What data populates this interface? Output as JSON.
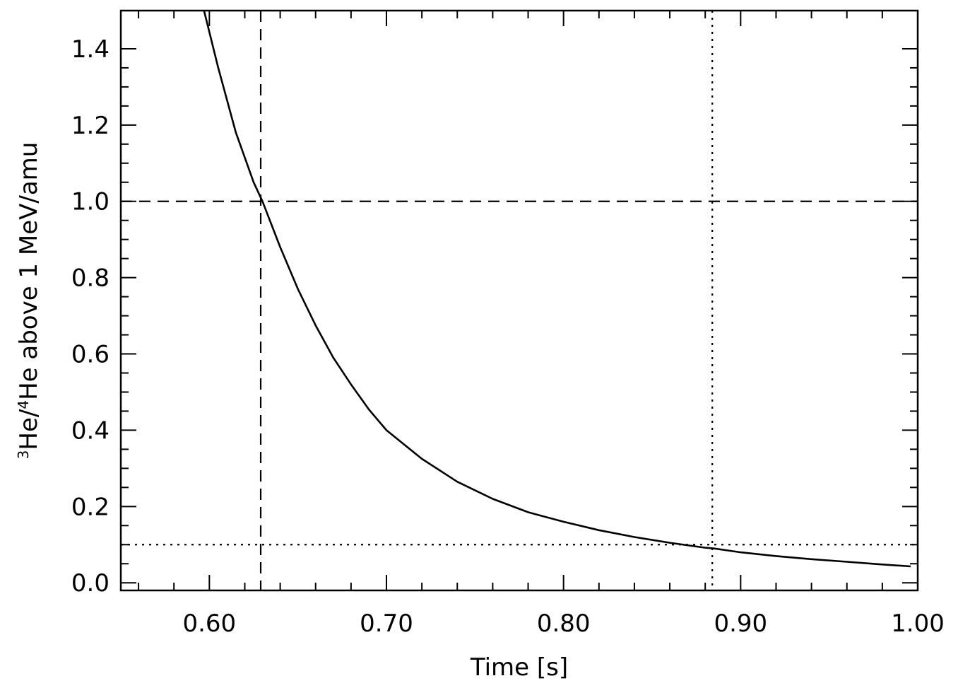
{
  "chart_data": {
    "type": "line",
    "xlabel": "Time [s]",
    "ylabel": {
      "parts": [
        {
          "text": "3",
          "sup": true
        },
        {
          "text": "He/",
          "sup": false
        },
        {
          "text": "4",
          "sup": true
        },
        {
          "text": "He above 1 MeV/amu",
          "sup": false
        }
      ]
    },
    "xlim": [
      0.55,
      1.0
    ],
    "ylim": [
      -0.02,
      1.5
    ],
    "x_ticks": [
      0.6,
      0.7,
      0.8,
      0.9,
      1.0
    ],
    "x_tick_labels": [
      "0.60",
      "0.70",
      "0.80",
      "0.90",
      "1.00"
    ],
    "y_ticks": [
      0.0,
      0.2,
      0.4,
      0.6,
      0.8,
      1.0,
      1.2,
      1.4
    ],
    "y_tick_labels": [
      "0.0",
      "0.2",
      "0.4",
      "0.6",
      "0.8",
      "1.0",
      "1.2",
      "1.4"
    ],
    "grid": false,
    "series": [
      {
        "style": "solid",
        "color": "#000000",
        "x": [
          0.597,
          0.605,
          0.615,
          0.625,
          0.63,
          0.64,
          0.65,
          0.66,
          0.67,
          0.68,
          0.69,
          0.7,
          0.72,
          0.74,
          0.76,
          0.78,
          0.8,
          0.82,
          0.84,
          0.86,
          0.88,
          0.885,
          0.9,
          0.92,
          0.94,
          0.96,
          0.98,
          0.996
        ],
        "y": [
          1.5,
          1.35,
          1.18,
          1.05,
          1.0,
          0.88,
          0.77,
          0.675,
          0.59,
          0.52,
          0.455,
          0.4,
          0.325,
          0.265,
          0.22,
          0.185,
          0.16,
          0.138,
          0.12,
          0.105,
          0.092,
          0.09,
          0.08,
          0.07,
          0.062,
          0.055,
          0.048,
          0.043
        ]
      }
    ],
    "reference_lines": [
      {
        "orientation": "vertical",
        "value": 0.629,
        "style": "dashed"
      },
      {
        "orientation": "horizontal",
        "value": 1.0,
        "style": "dashed"
      },
      {
        "orientation": "vertical",
        "value": 0.884,
        "style": "dotted"
      },
      {
        "orientation": "horizontal",
        "value": 0.1,
        "style": "dotted"
      }
    ]
  }
}
